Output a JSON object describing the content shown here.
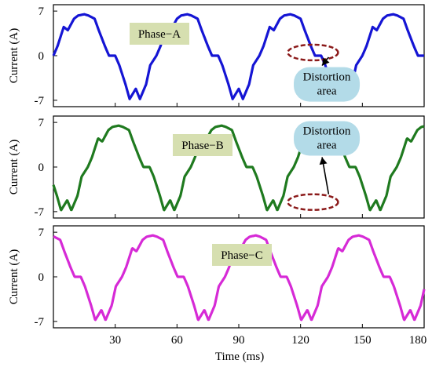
{
  "chart_data": {
    "type": "line",
    "xlabel": "Time (ms)",
    "ylabel": "Current (A)",
    "xlim": [
      0,
      180
    ],
    "ylim": [
      -8,
      8
    ],
    "x_ticks": [
      "30",
      "60",
      "90",
      "120",
      "150",
      "180"
    ],
    "y_ticks": [
      "7",
      "0",
      "-7"
    ],
    "grid": false,
    "waveform": {
      "period_ms": 50,
      "peak_A": 7,
      "t": [
        0,
        2,
        5,
        7,
        10,
        12,
        15,
        17,
        20,
        22,
        25,
        27,
        30,
        32,
        35,
        37,
        40,
        42,
        45,
        47,
        50
      ],
      "i": [
        0,
        1.5,
        4.5,
        4.0,
        5.8,
        6.3,
        6.5,
        6.3,
        5.8,
        4.0,
        1.5,
        0,
        0,
        -1.5,
        -4.5,
        -6.8,
        -5.2,
        -6.8,
        -4.5,
        -1.5,
        0
      ]
    },
    "panels": [
      {
        "name": "Phase−A",
        "phase_shift_ms": 0,
        "color": "#1515d4",
        "note": "Distortion area",
        "note_lines": [
          "Distortion",
          "area"
        ],
        "note_x_ms": 127,
        "note_y_A": -4.5,
        "circle_x_ms": 126,
        "circle_y_A": 0.5
      },
      {
        "name": "Phase−B",
        "phase_shift_ms": 33.3,
        "color": "#1f7a1f",
        "note": "Distortion area",
        "note_lines": [
          "Distortion",
          "area"
        ],
        "note_x_ms": 127,
        "note_y_A": 4.5,
        "circle_x_ms": 126,
        "circle_y_A": -5.5
      },
      {
        "name": "Phase−C",
        "phase_shift_ms": 16.7,
        "color": "#d62ad6",
        "note": "",
        "note_lines": []
      }
    ]
  },
  "colors": {
    "tag_fill": "#d6dfb0",
    "note_fill": "#b3dbe8",
    "circle_stroke": "#8b1a1a"
  }
}
